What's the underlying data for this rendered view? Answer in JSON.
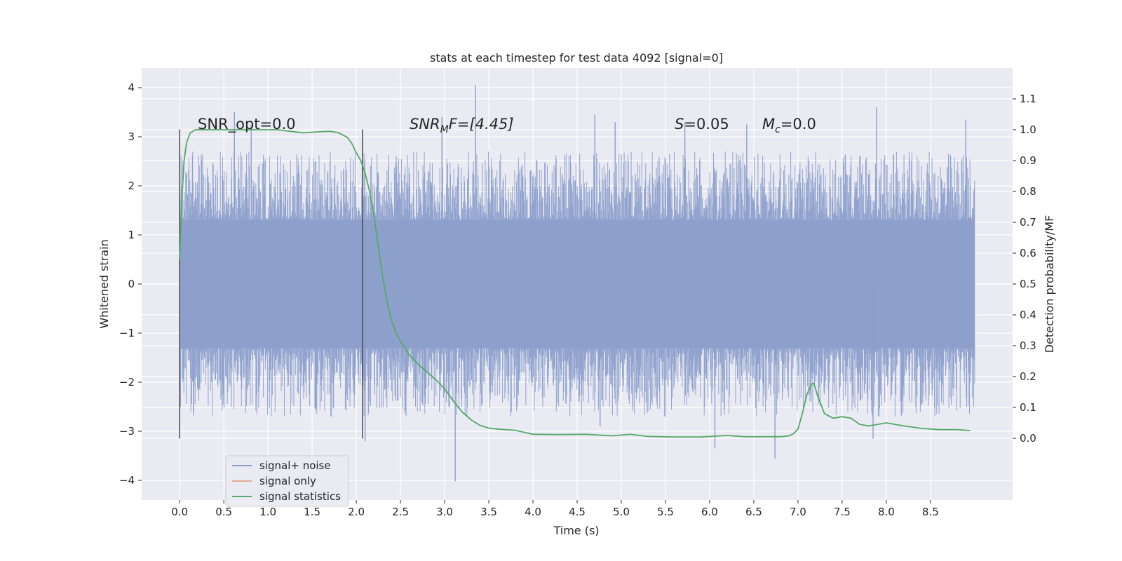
{
  "chart_data": {
    "type": "line",
    "title": "stats at each timestep for test data 4092 [signal=0]",
    "xlabel": "Time (s)",
    "ylabel_left": "Whitened strain",
    "ylabel_right": "Detection probability/MF",
    "xlim": [
      -0.43,
      9.43
    ],
    "ylim_left": [
      -4.4,
      4.4
    ],
    "ylim_right": [
      -0.2,
      1.2
    ],
    "x_ticks": [
      "0.0",
      "0.5",
      "1.0",
      "1.5",
      "2.0",
      "2.5",
      "3.0",
      "3.5",
      "4.0",
      "4.5",
      "5.0",
      "5.5",
      "6.0",
      "6.5",
      "7.0",
      "7.5",
      "8.0",
      "8.5"
    ],
    "y_left_ticks": [
      "4",
      "3",
      "2",
      "1",
      "0",
      "−1",
      "−2",
      "−3",
      "−4"
    ],
    "y_right_ticks": [
      "1.1",
      "1.0",
      "0.9",
      "0.8",
      "0.7",
      "0.6",
      "0.5",
      "0.4",
      "0.3",
      "0.2",
      "0.1",
      "0.0"
    ],
    "grid": true,
    "annotations": {
      "snr_opt": "SNR_opt=0.0",
      "snr_mf_sym": "SNR",
      "snr_mf_sub": "M",
      "snr_mf_rest": "F=[4.45]",
      "s_sym": "S",
      "s_rest": "=0.05",
      "mc_sym": "M",
      "mc_sub": "c",
      "mc_rest": "=0.0"
    },
    "vlines_x": [
      0.0,
      2.07
    ],
    "vlines_range": [
      -3.15,
      3.15
    ],
    "noise_series": {
      "name": "signal+ noise",
      "color": "#8c9fcb",
      "x_range": [
        0.0,
        9.0
      ],
      "dense_band": [
        -1.3,
        1.3
      ],
      "typical_peak": [
        2.7,
        -2.7
      ],
      "notable_spikes": [
        {
          "x": 0.62,
          "y": 3.5
        },
        {
          "x": 0.81,
          "y": 3.25
        },
        {
          "x": 2.1,
          "y": -3.2
        },
        {
          "x": 2.97,
          "y": 3.4
        },
        {
          "x": 3.12,
          "y": -4.02
        },
        {
          "x": 3.35,
          "y": 4.05
        },
        {
          "x": 4.7,
          "y": 3.45
        },
        {
          "x": 4.76,
          "y": -2.9
        },
        {
          "x": 4.93,
          "y": 3.3
        },
        {
          "x": 5.72,
          "y": 3.3
        },
        {
          "x": 6.06,
          "y": -3.35
        },
        {
          "x": 6.42,
          "y": 3.25
        },
        {
          "x": 6.74,
          "y": -3.55
        },
        {
          "x": 7.85,
          "y": -3.15
        },
        {
          "x": 7.89,
          "y": 3.6
        },
        {
          "x": 8.9,
          "y": 3.35
        }
      ]
    },
    "signal_series": {
      "name": "signal only",
      "color": "#dd8452",
      "values": []
    },
    "stat_series": {
      "name": "signal statistics",
      "color": "#55a868",
      "x": [
        0.0,
        0.02,
        0.05,
        0.08,
        0.12,
        0.18,
        0.25,
        0.35,
        0.5,
        0.7,
        0.9,
        1.1,
        1.25,
        1.4,
        1.55,
        1.7,
        1.8,
        1.9,
        1.95,
        2.0,
        2.05,
        2.1,
        2.15,
        2.2,
        2.25,
        2.3,
        2.35,
        2.4,
        2.45,
        2.5,
        2.6,
        2.7,
        2.8,
        2.9,
        3.0,
        3.1,
        3.2,
        3.3,
        3.4,
        3.5,
        3.6,
        3.8,
        4.0,
        4.3,
        4.6,
        4.9,
        5.1,
        5.3,
        5.6,
        5.9,
        6.2,
        6.4,
        6.6,
        6.8,
        6.9,
        6.95,
        7.0,
        7.05,
        7.1,
        7.15,
        7.18,
        7.22,
        7.3,
        7.4,
        7.5,
        7.6,
        7.7,
        7.8,
        7.9,
        8.0,
        8.1,
        8.2,
        8.4,
        8.6,
        8.8,
        8.95
      ],
      "y": [
        0.58,
        0.75,
        0.9,
        0.96,
        0.99,
        1.0,
        1.0,
        1.0,
        1.0,
        1.0,
        1.0,
        1.0,
        0.995,
        0.99,
        0.993,
        0.995,
        0.99,
        0.975,
        0.955,
        0.925,
        0.9,
        0.86,
        0.8,
        0.72,
        0.62,
        0.52,
        0.44,
        0.38,
        0.34,
        0.315,
        0.27,
        0.24,
        0.215,
        0.19,
        0.16,
        0.12,
        0.085,
        0.06,
        0.042,
        0.033,
        0.03,
        0.026,
        0.013,
        0.012,
        0.013,
        0.008,
        0.013,
        0.006,
        0.004,
        0.004,
        0.009,
        0.005,
        0.005,
        0.005,
        0.008,
        0.015,
        0.03,
        0.08,
        0.14,
        0.175,
        0.178,
        0.14,
        0.08,
        0.065,
        0.07,
        0.065,
        0.045,
        0.04,
        0.045,
        0.05,
        0.045,
        0.04,
        0.032,
        0.028,
        0.028,
        0.025
      ]
    },
    "legend": {
      "placement": "lower-left",
      "items": [
        "signal+ noise",
        "signal only",
        "signal statistics"
      ]
    }
  }
}
